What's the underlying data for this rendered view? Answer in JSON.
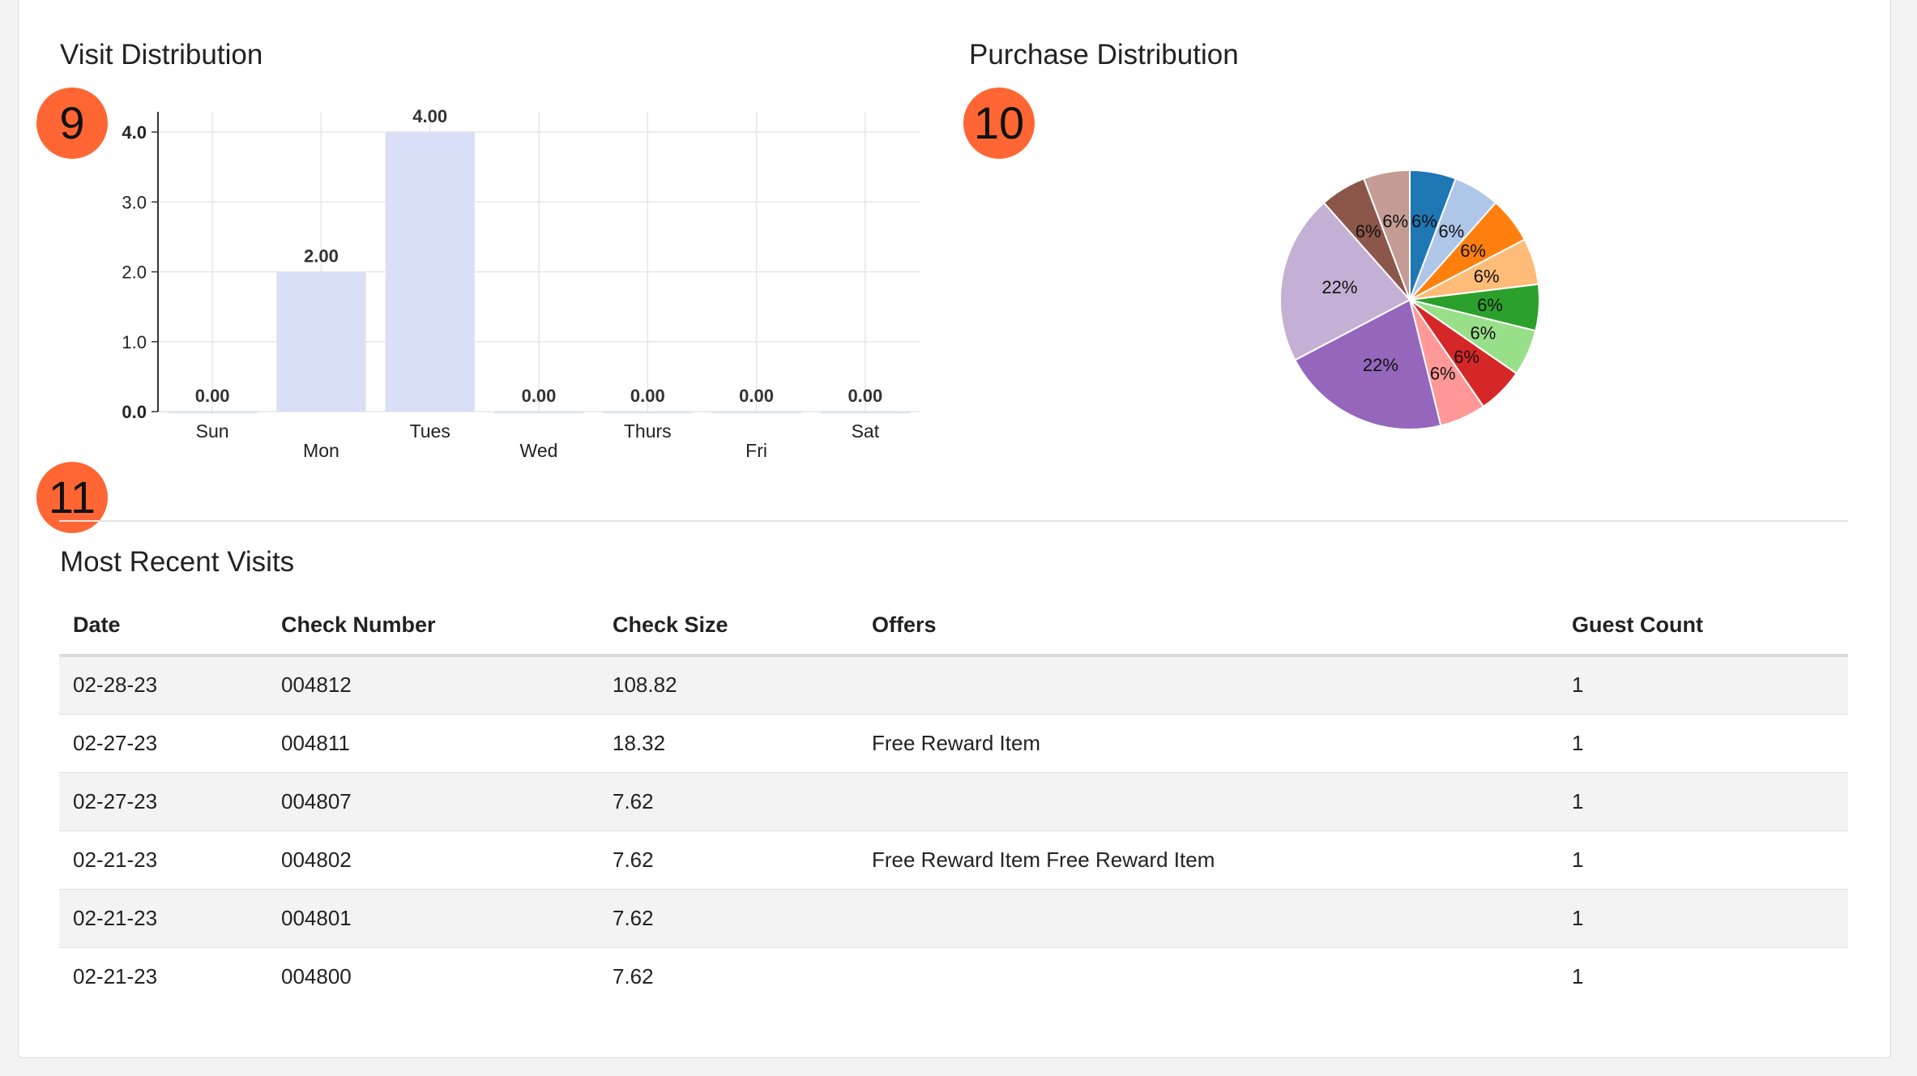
{
  "visit_section": {
    "title": "Visit Distribution",
    "badge": "9"
  },
  "purchase_section": {
    "title": "Purchase Distribution",
    "badge": "10"
  },
  "recent_section": {
    "title": "Most Recent Visits",
    "badge": "11"
  },
  "chart_data": [
    {
      "type": "bar",
      "categories": [
        "Sun",
        "Mon",
        "Tues",
        "Wed",
        "Thurs",
        "Fri",
        "Sat"
      ],
      "values": [
        0,
        2,
        4,
        0,
        0,
        0,
        0
      ],
      "value_labels": [
        "0.00",
        "2.00",
        "4.00",
        "0.00",
        "0.00",
        "0.00",
        "0.00"
      ],
      "y_ticks": [
        "0.0",
        "1.0",
        "2.0",
        "3.0",
        "4.0"
      ],
      "ylim": [
        0,
        4
      ],
      "grid": true,
      "bar_color": "#d9dff7",
      "title": "Visit Distribution"
    },
    {
      "type": "pie",
      "title": "Purchase Distribution",
      "slices": [
        {
          "label": "6%",
          "value": 6,
          "color": "#1f77b4"
        },
        {
          "label": "6%",
          "value": 6,
          "color": "#aec7e8"
        },
        {
          "label": "6%",
          "value": 6,
          "color": "#ff7f0e"
        },
        {
          "label": "6%",
          "value": 6,
          "color": "#ffbb78"
        },
        {
          "label": "6%",
          "value": 6,
          "color": "#2ca02c"
        },
        {
          "label": "6%",
          "value": 6,
          "color": "#98df8a"
        },
        {
          "label": "6%",
          "value": 6,
          "color": "#d62728"
        },
        {
          "label": "6%",
          "value": 6,
          "color": "#ff9896"
        },
        {
          "label": "22%",
          "value": 22,
          "color": "#9467bd"
        },
        {
          "label": "22%",
          "value": 22,
          "color": "#c5b0d5"
        },
        {
          "label": "6%",
          "value": 6,
          "color": "#8c564b"
        },
        {
          "label": "6%",
          "value": 6,
          "color": "#c49c94"
        }
      ]
    }
  ],
  "table": {
    "headers": [
      "Date",
      "Check Number",
      "Check Size",
      "Offers",
      "Guest Count"
    ],
    "rows": [
      [
        "02-28-23",
        "004812",
        "108.82",
        "",
        "1"
      ],
      [
        "02-27-23",
        "004811",
        "18.32",
        "Free Reward Item",
        "1"
      ],
      [
        "02-27-23",
        "004807",
        "7.62",
        "",
        "1"
      ],
      [
        "02-21-23",
        "004802",
        "7.62",
        "Free Reward Item Free Reward Item",
        "1"
      ],
      [
        "02-21-23",
        "004801",
        "7.62",
        "",
        "1"
      ],
      [
        "02-21-23",
        "004800",
        "7.62",
        "",
        "1"
      ]
    ]
  },
  "colors": {
    "badge": "#ff6633",
    "bar": "#d9dff7"
  }
}
